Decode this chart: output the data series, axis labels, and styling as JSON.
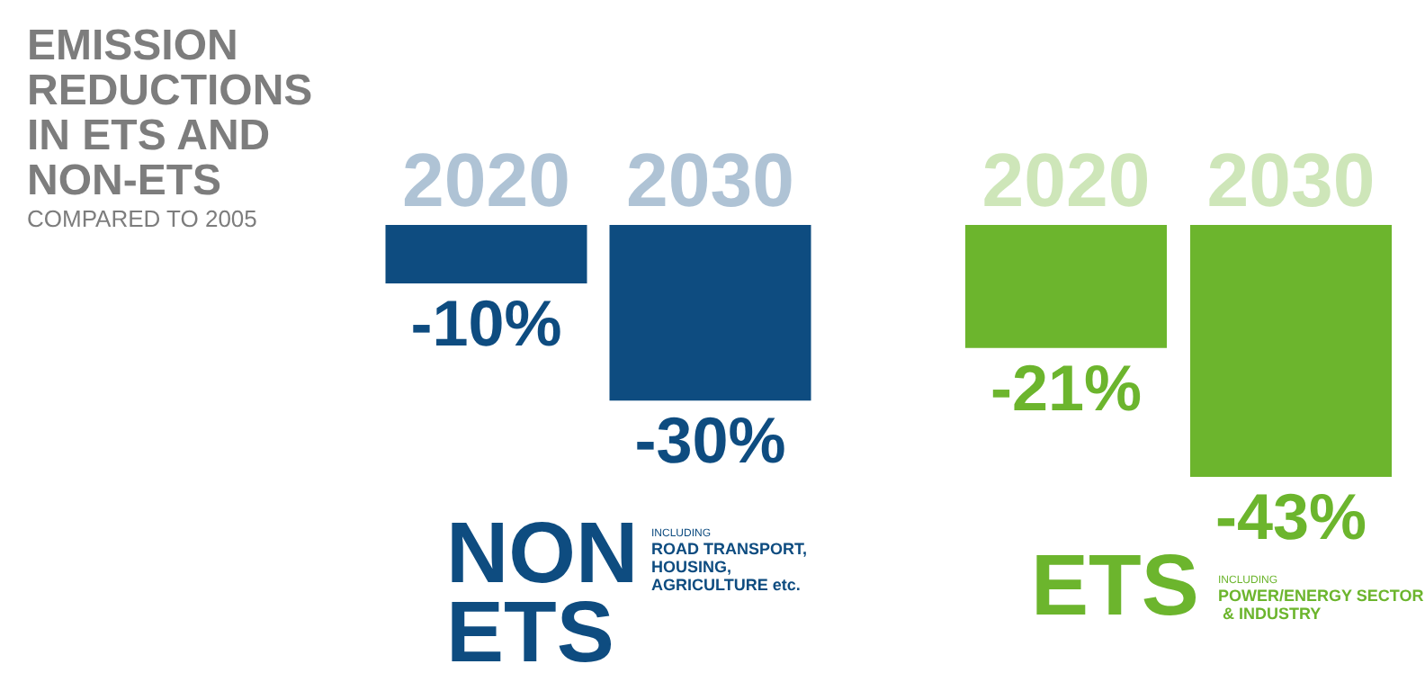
{
  "chart_data": [
    {
      "type": "bar",
      "title": "EMISSION REDUCTIONS IN ETS AND NON-ETS",
      "subtitle": "COMPARED TO 2005",
      "categories": [
        "2020",
        "2030"
      ],
      "values": [
        -10,
        -30
      ],
      "value_labels": [
        "-10%",
        "-30%"
      ],
      "color": "#0e4c80",
      "xlabel": "NON ETS",
      "annotations": [
        "INCLUDING",
        "ROAD TRANSPORT, HOUSING, AGRICULTURE etc."
      ]
    },
    {
      "type": "bar",
      "categories": [
        "2020",
        "2030"
      ],
      "values": [
        -21,
        -43
      ],
      "value_labels": [
        "-21%",
        "-43%"
      ],
      "color": "#6cb52d",
      "xlabel": "ETS",
      "annotations": [
        "INCLUDING",
        "POWER/ENERGY SECTOR & INDUSTRY"
      ]
    }
  ]
}
